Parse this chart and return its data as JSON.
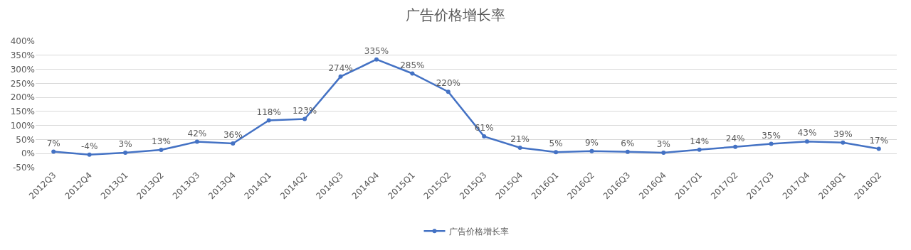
{
  "chart_data": {
    "type": "line",
    "title": "广告价格增长率",
    "categories": [
      "2012Q3",
      "2012Q4",
      "2013Q1",
      "2013Q2",
      "2013Q3",
      "2013Q4",
      "2014Q1",
      "2014Q2",
      "2014Q3",
      "2014Q4",
      "2015Q1",
      "2015Q2",
      "2015Q3",
      "2015Q4",
      "2016Q1",
      "2016Q2",
      "2016Q3",
      "2016Q4",
      "2017Q1",
      "2017Q2",
      "2017Q3",
      "2017Q4",
      "2018Q1",
      "2018Q2"
    ],
    "series": [
      {
        "name": "广告价格增长率",
        "color": "#4472c4",
        "values": [
          7,
          -4,
          3,
          13,
          42,
          36,
          118,
          123,
          274,
          335,
          285,
          220,
          61,
          21,
          5,
          9,
          6,
          3,
          14,
          24,
          35,
          43,
          39,
          17
        ],
        "value_labels": [
          "7%",
          "-4%",
          "3%",
          "13%",
          "42%",
          "36%",
          "118%",
          "123%",
          "274%",
          "335%",
          "285%",
          "220%",
          "61%",
          "21%",
          "5%",
          "9%",
          "6%",
          "3%",
          "14%",
          "24%",
          "35%",
          "43%",
          "39%",
          "17%"
        ]
      }
    ],
    "ylim": [
      -50,
      400
    ],
    "yticks": [
      {
        "value": -50,
        "label": "-50%"
      },
      {
        "value": 0,
        "label": "0%"
      },
      {
        "value": 50,
        "label": "50%"
      },
      {
        "value": 100,
        "label": "100%"
      },
      {
        "value": 150,
        "label": "150%"
      },
      {
        "value": 200,
        "label": "200%"
      },
      {
        "value": 250,
        "label": "250%"
      },
      {
        "value": 300,
        "label": "300%"
      },
      {
        "value": 350,
        "label": "350%"
      },
      {
        "value": 400,
        "label": "400%"
      }
    ],
    "grid": "y",
    "legend": "bottom",
    "marker": "circle",
    "line_style": "solid"
  }
}
